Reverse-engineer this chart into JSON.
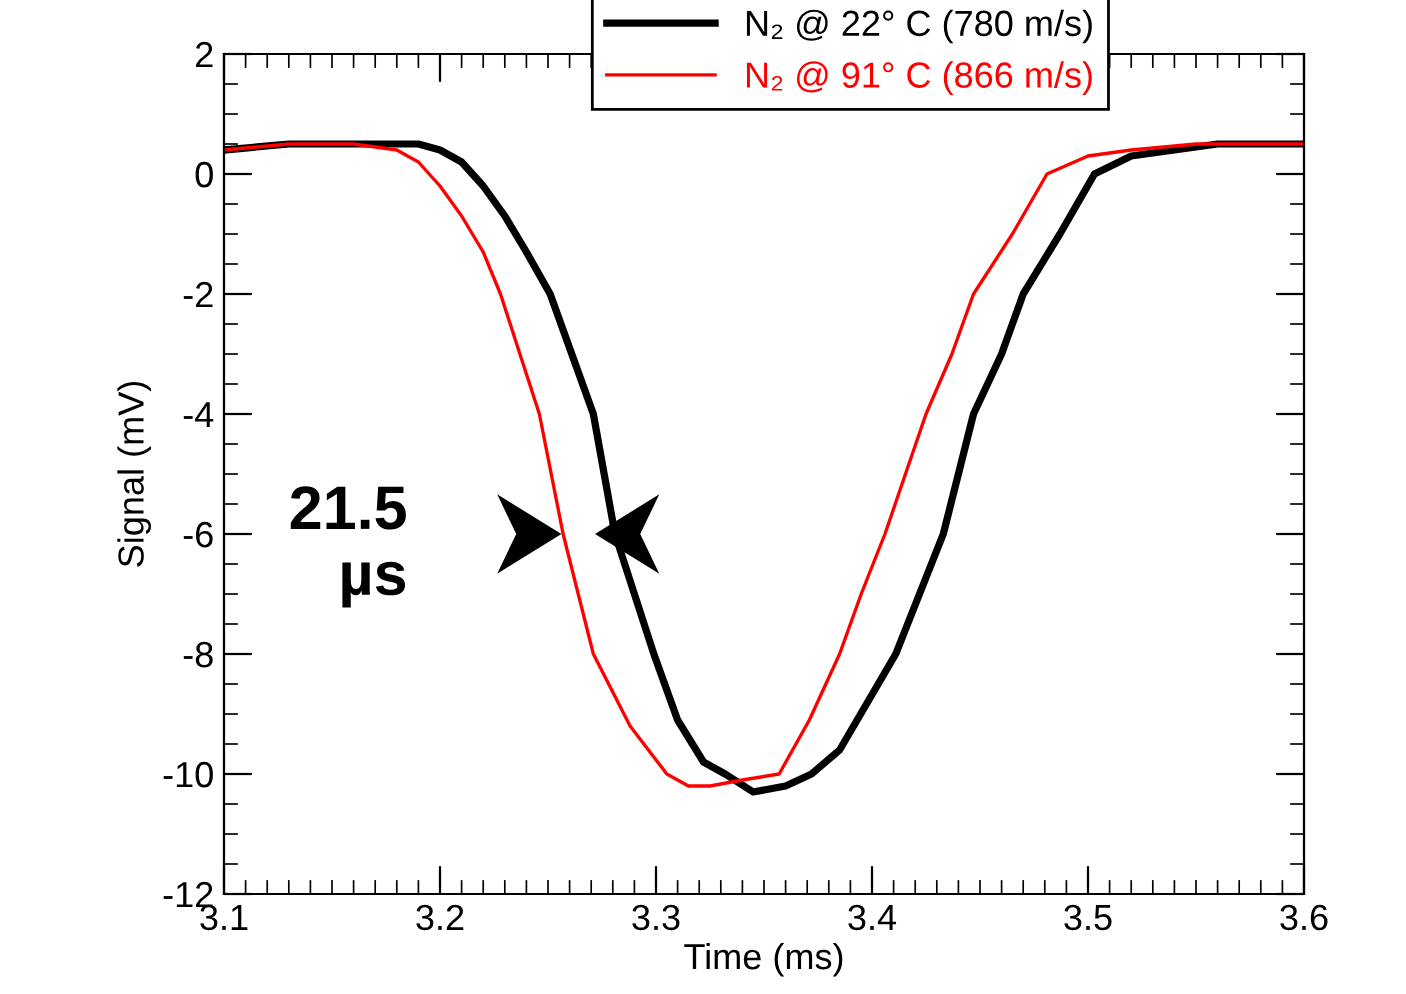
{
  "chart_data": {
    "type": "line",
    "xlabel": "Time (ms)",
    "ylabel": "Signal (mV)",
    "xlim": [
      3.1,
      3.6
    ],
    "ylim": [
      -12,
      2
    ],
    "xticks": [
      3.1,
      3.2,
      3.3,
      3.4,
      3.5,
      3.6
    ],
    "yticks": [
      -12,
      -10,
      -8,
      -6,
      -4,
      -2,
      0,
      2
    ],
    "grid": false,
    "legend": "top",
    "marker": "none",
    "line_style": "solid",
    "annotations": [
      "21.5\nµs"
    ],
    "series": [
      {
        "name": "N₂ @ 22° C (780 m/s)",
        "color": "#000000",
        "x": [
          3.1,
          3.13,
          3.16,
          3.19,
          3.2,
          3.21,
          3.22,
          3.23,
          3.24,
          3.251,
          3.261,
          3.271,
          3.281,
          3.29,
          3.299,
          3.31,
          3.322,
          3.332,
          3.345,
          3.36,
          3.372,
          3.385,
          3.398,
          3.411,
          3.422,
          3.433,
          3.447,
          3.46,
          3.47,
          3.487,
          3.503,
          3.52,
          3.54,
          3.56,
          3.58,
          3.6
        ],
        "values": [
          0.4,
          0.5,
          0.5,
          0.5,
          0.4,
          0.2,
          -0.2,
          -0.7,
          -1.3,
          -2,
          -3,
          -4,
          -6,
          -7,
          -8,
          -9.1,
          -9.8,
          -10,
          -10.3,
          -10.2,
          -10,
          -9.6,
          -8.8,
          -8,
          -7,
          -6,
          -4,
          -3,
          -2,
          -1,
          0,
          0.3,
          0.4,
          0.5,
          0.5,
          0.5
        ]
      },
      {
        "name": "N₂ @ 91° C (866 m/s)",
        "color": "#ff0000",
        "x": [
          3.1,
          3.13,
          3.16,
          3.18,
          3.19,
          3.2,
          3.21,
          3.22,
          3.228,
          3.237,
          3.246,
          3.257,
          3.264,
          3.271,
          3.288,
          3.305,
          3.315,
          3.325,
          3.34,
          3.357,
          3.371,
          3.385,
          3.395,
          3.406,
          3.425,
          3.437,
          3.447,
          3.465,
          3.481,
          3.5,
          3.52,
          3.55,
          3.58,
          3.6
        ],
        "values": [
          0.4,
          0.5,
          0.5,
          0.4,
          0.2,
          -0.2,
          -0.7,
          -1.3,
          -2,
          -3,
          -4,
          -6,
          -7,
          -8,
          -9.2,
          -10,
          -10.2,
          -10.2,
          -10.1,
          -10,
          -9.1,
          -8,
          -7,
          -6,
          -4,
          -3,
          -2,
          -1,
          0,
          0.3,
          0.4,
          0.5,
          0.5,
          0.5
        ]
      }
    ]
  }
}
